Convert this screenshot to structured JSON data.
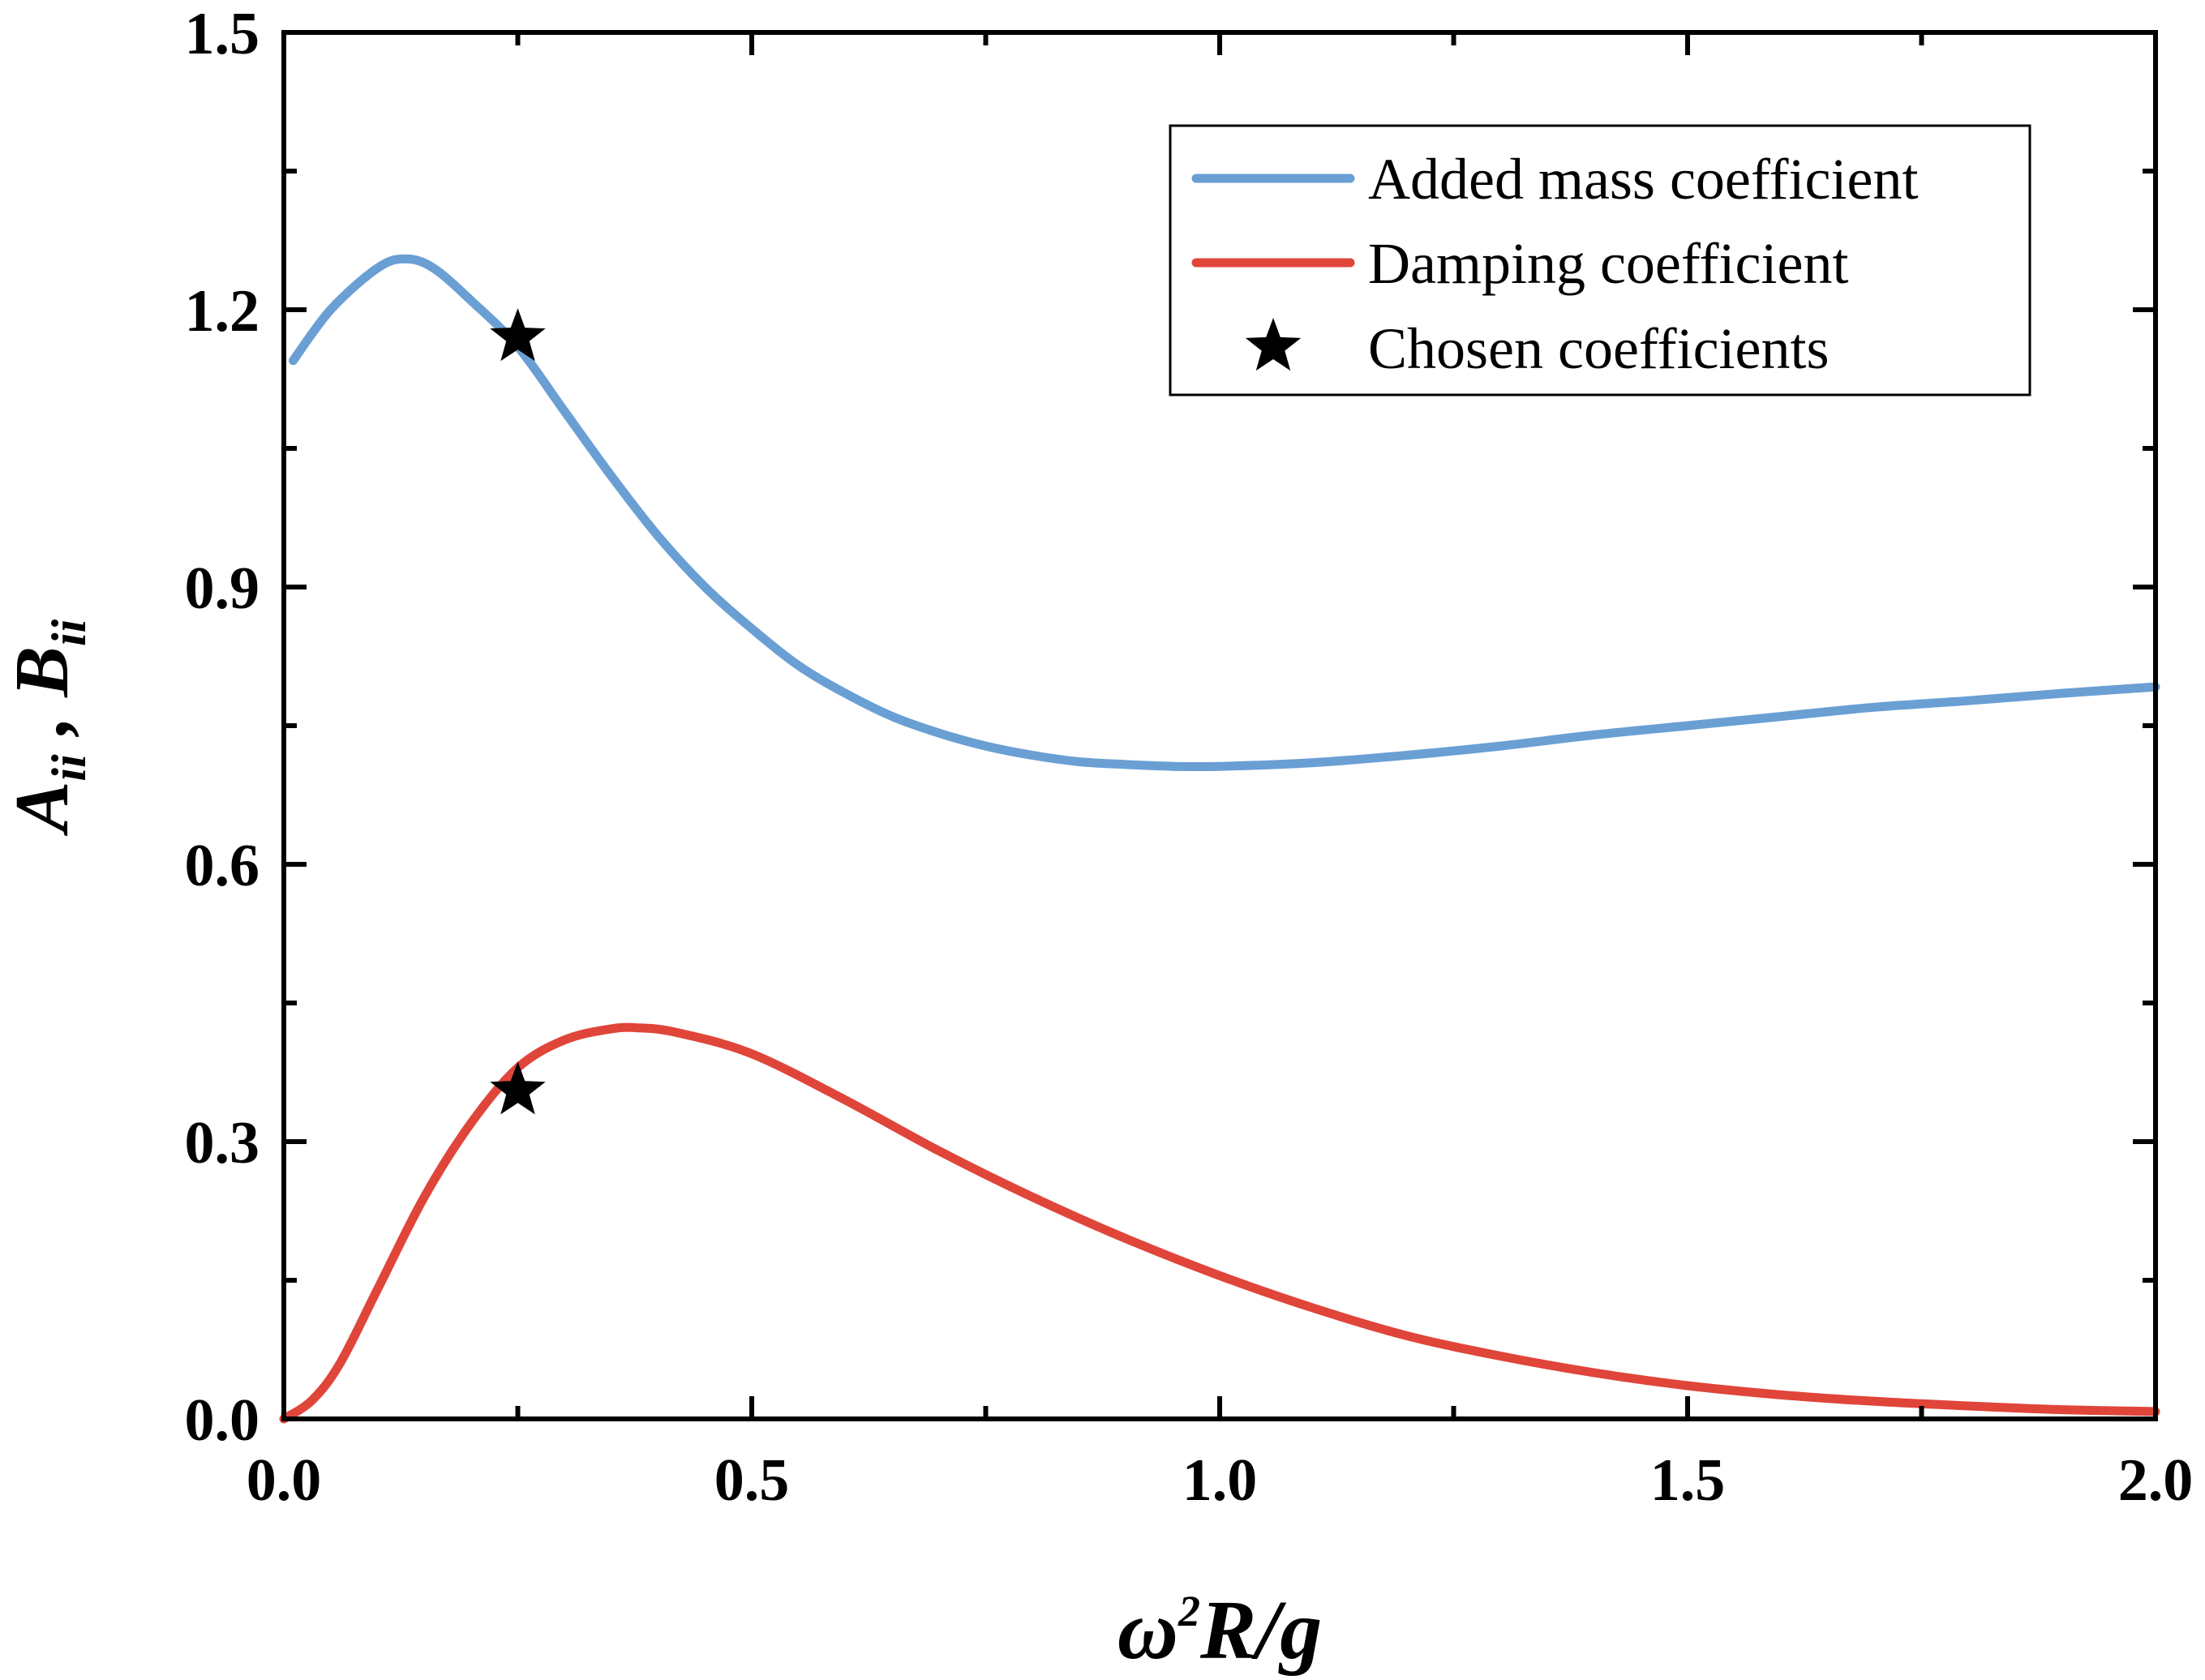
{
  "chart_data": {
    "type": "line",
    "title": "",
    "xlabel": {
      "base": "ω",
      "sup": "2",
      "rest": "R/g"
    },
    "ylabel": {
      "a": "A",
      "a_sub": "ii",
      "sep": " , ",
      "b": "B",
      "b_sub": "ii"
    },
    "xlim": [
      0.0,
      2.0
    ],
    "ylim": [
      0.0,
      1.5
    ],
    "x_ticks": [
      0.0,
      0.5,
      1.0,
      1.5,
      2.0
    ],
    "x_tick_labels": [
      "0.0",
      "0.5",
      "1.0",
      "1.5",
      "2.0"
    ],
    "y_ticks": [
      0.0,
      0.3,
      0.6,
      0.9,
      1.2,
      1.5
    ],
    "y_tick_labels": [
      "0.0",
      "0.3",
      "0.6",
      "0.9",
      "1.2",
      "1.5"
    ],
    "grid": false,
    "legend_position": "top-right",
    "series": [
      {
        "name": "Added mass coefficient",
        "color": "#6a9fd4",
        "x": [
          0.01,
          0.05,
          0.1,
          0.13,
          0.16,
          0.2,
          0.25,
          0.3,
          0.35,
          0.4,
          0.45,
          0.5,
          0.55,
          0.6,
          0.65,
          0.7,
          0.75,
          0.8,
          0.85,
          0.9,
          0.95,
          1.0,
          1.1,
          1.2,
          1.3,
          1.4,
          1.5,
          1.6,
          1.7,
          1.8,
          1.9,
          2.0
        ],
        "y": [
          1.145,
          1.2,
          1.245,
          1.255,
          1.245,
          1.21,
          1.16,
          1.09,
          1.02,
          0.955,
          0.9,
          0.855,
          0.815,
          0.785,
          0.76,
          0.742,
          0.728,
          0.718,
          0.711,
          0.708,
          0.706,
          0.706,
          0.71,
          0.718,
          0.728,
          0.74,
          0.75,
          0.76,
          0.77,
          0.777,
          0.785,
          0.792
        ]
      },
      {
        "name": "Damping coefficient",
        "color": "#e0453a",
        "x": [
          0.0,
          0.03,
          0.06,
          0.1,
          0.15,
          0.2,
          0.25,
          0.3,
          0.35,
          0.38,
          0.42,
          0.5,
          0.6,
          0.7,
          0.8,
          0.9,
          1.0,
          1.1,
          1.2,
          1.3,
          1.4,
          1.5,
          1.6,
          1.7,
          1.8,
          1.9,
          2.0
        ],
        "y": [
          0.0,
          0.02,
          0.06,
          0.14,
          0.24,
          0.32,
          0.38,
          0.41,
          0.422,
          0.423,
          0.418,
          0.395,
          0.345,
          0.29,
          0.24,
          0.195,
          0.155,
          0.12,
          0.09,
          0.068,
          0.05,
          0.036,
          0.026,
          0.019,
          0.014,
          0.01,
          0.008
        ]
      }
    ],
    "markers": {
      "name": "Chosen coefficients",
      "color": "#000000",
      "points": [
        {
          "x": 0.25,
          "y": 1.17
        },
        {
          "x": 0.25,
          "y": 0.355
        }
      ]
    }
  }
}
